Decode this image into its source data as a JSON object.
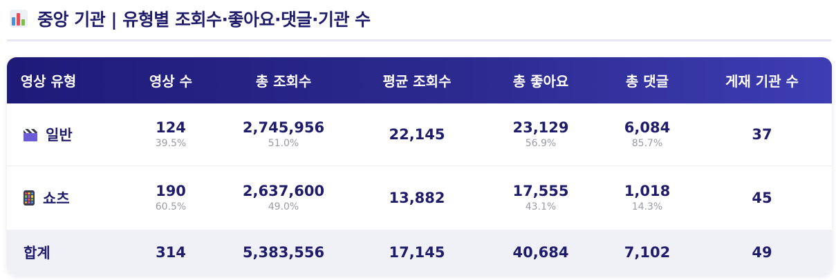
{
  "header": {
    "title": "중앙 기관 | 유형별 조회수·좋아요·댓글·기관 수",
    "icon": "bar-chart-icon"
  },
  "columns": [
    "영상 유형",
    "영상 수",
    "총 조회수",
    "평균 조회수",
    "총 좋아요",
    "총 댓글",
    "게재 기관 수"
  ],
  "rows": [
    {
      "type": "일반",
      "icon": "clapperboard-icon",
      "video_count": "124",
      "video_count_pct": "39.5%",
      "total_views": "2,745,956",
      "total_views_pct": "51.0%",
      "avg_views": "22,145",
      "total_likes": "23,129",
      "total_likes_pct": "56.9%",
      "total_comments": "6,084",
      "total_comments_pct": "85.7%",
      "agency_count": "37"
    },
    {
      "type": "쇼츠",
      "icon": "mobile-phone-icon",
      "video_count": "190",
      "video_count_pct": "60.5%",
      "total_views": "2,637,600",
      "total_views_pct": "49.0%",
      "avg_views": "13,882",
      "total_likes": "17,555",
      "total_likes_pct": "43.1%",
      "total_comments": "1,018",
      "total_comments_pct": "14.3%",
      "agency_count": "45"
    }
  ],
  "total": {
    "label": "합계",
    "video_count": "314",
    "total_views": "5,383,556",
    "avg_views": "17,145",
    "total_likes": "40,684",
    "total_comments": "7,102",
    "agency_count": "49"
  },
  "colors": {
    "header_gradient_start": "#1e1a78",
    "header_gradient_end": "#3e3db3",
    "text_primary": "#1f1d6b",
    "text_muted": "#9a9aa8",
    "total_row_bg": "#f0f1f7"
  }
}
